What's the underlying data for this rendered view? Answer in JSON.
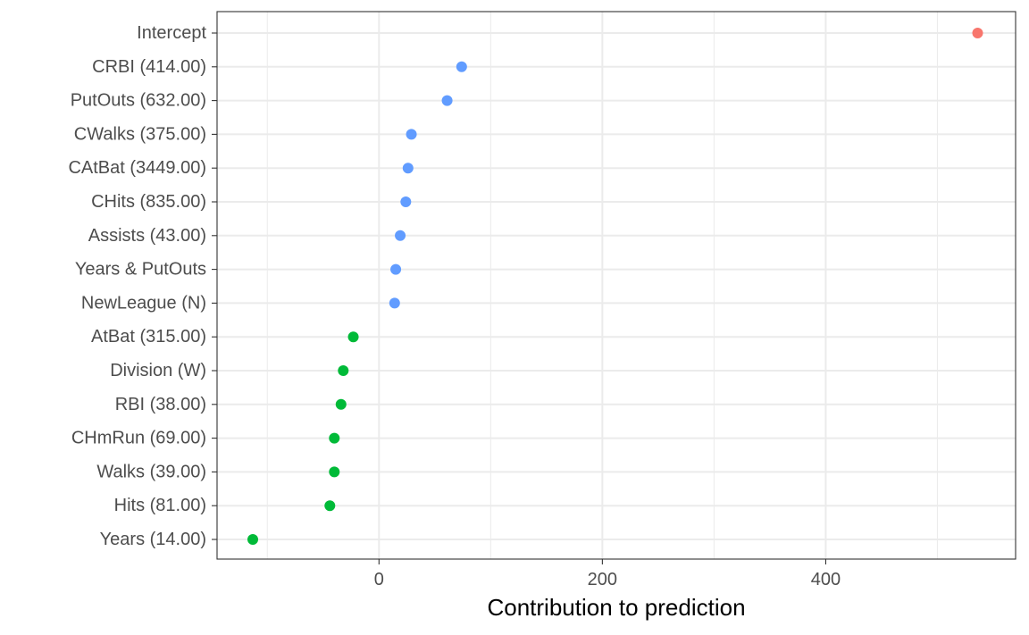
{
  "chart_data": {
    "type": "scatter",
    "title": "",
    "xlabel": "Contribution to prediction",
    "ylabel": "",
    "xlim": [
      -145,
      570
    ],
    "x_ticks": [
      0,
      200,
      400
    ],
    "x_minor_ticks": [
      -100,
      100,
      300,
      500
    ],
    "grid": true,
    "legend": "none",
    "colors": {
      "intercept": "#F8766D",
      "positive": "#619CFF",
      "negative": "#00BA38",
      "grid": "#ebebeb",
      "panel_border": "#333333",
      "tick_label": "#4d4d4d"
    },
    "points": [
      {
        "label": "Intercept",
        "value": 536,
        "group": "intercept"
      },
      {
        "label": "CRBI (414.00)",
        "value": 74,
        "group": "positive"
      },
      {
        "label": "PutOuts (632.00)",
        "value": 61,
        "group": "positive"
      },
      {
        "label": "CWalks (375.00)",
        "value": 29,
        "group": "positive"
      },
      {
        "label": "CAtBat (3449.00)",
        "value": 26,
        "group": "positive"
      },
      {
        "label": "CHits (835.00)",
        "value": 24,
        "group": "positive"
      },
      {
        "label": "Assists (43.00)",
        "value": 19,
        "group": "positive"
      },
      {
        "label": "Years & PutOuts",
        "value": 15,
        "group": "positive"
      },
      {
        "label": "NewLeague (N)",
        "value": 14,
        "group": "positive"
      },
      {
        "label": "AtBat (315.00)",
        "value": -23,
        "group": "negative"
      },
      {
        "label": "Division (W)",
        "value": -32,
        "group": "negative"
      },
      {
        "label": "RBI (38.00)",
        "value": -34,
        "group": "negative"
      },
      {
        "label": "CHmRun (69.00)",
        "value": -40,
        "group": "negative"
      },
      {
        "label": "Walks (39.00)",
        "value": -40,
        "group": "negative"
      },
      {
        "label": "Hits (81.00)",
        "value": -44,
        "group": "negative"
      },
      {
        "label": "Years (14.00)",
        "value": -113,
        "group": "negative"
      }
    ]
  }
}
